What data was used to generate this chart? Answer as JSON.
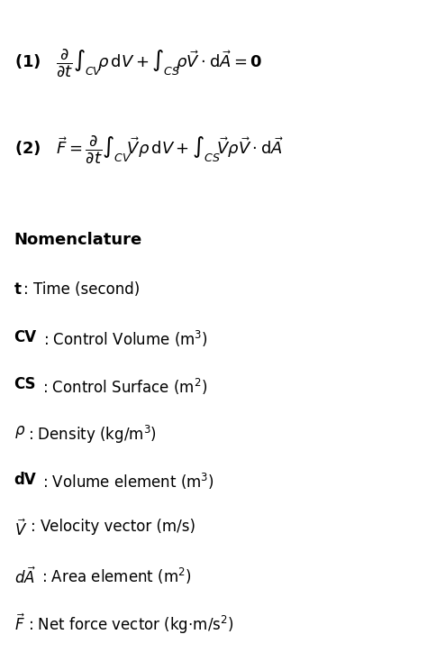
{
  "background_color": "#ffffff",
  "text_color": "#000000",
  "fig_width": 4.74,
  "fig_height": 7.34,
  "eq1": "$\\mathbf{(1)}\\quad \\dfrac{\\partial}{\\partial t}\\int_{CV} \\rho\\,\\mathbf{d}\\mathbf{V} + \\int_{CS} \\rho\\vec{V}\\cdot \\mathbf{d}\\vec{A} = \\mathbf{0}$",
  "eq2": "$\\mathbf{(2)}\\quad \\vec{F} = \\dfrac{\\partial}{\\partial t}\\int_{CV} \\vec{V}\\rho\\,\\mathbf{d}\\mathbf{V} + \\int_{CS} \\vec{V}\\rho\\vec{V}\\cdot \\mathbf{d}\\vec{A}$",
  "nomenclature_title": "Nomenclature",
  "items": [
    {
      "bold": "t",
      "rest": ": Time (second)"
    },
    {
      "bold": "CV",
      "rest": ": Control Volume (m$^3$)"
    },
    {
      "bold": "CS",
      "rest": ": Control Surface (m$^2$)"
    },
    {
      "bold": "$\\rho$",
      "rest": ": Density (kg/m$^3$)"
    },
    {
      "bold": "dV",
      "rest": ": Volume element (m$^3$)"
    },
    {
      "bold": "$\\vec{V}$",
      "rest": ": Velocity vector (m/s)"
    },
    {
      "bold": "$d\\vec{A}$",
      "rest": ": Area element (m$^2$)"
    },
    {
      "bold": "$\\vec{F}$",
      "rest": ": Net force vector (kg$\\cdot$m/s$^2$)"
    }
  ],
  "eq_fontsize": 13,
  "title_fontsize": 13,
  "item_fontsize": 12
}
